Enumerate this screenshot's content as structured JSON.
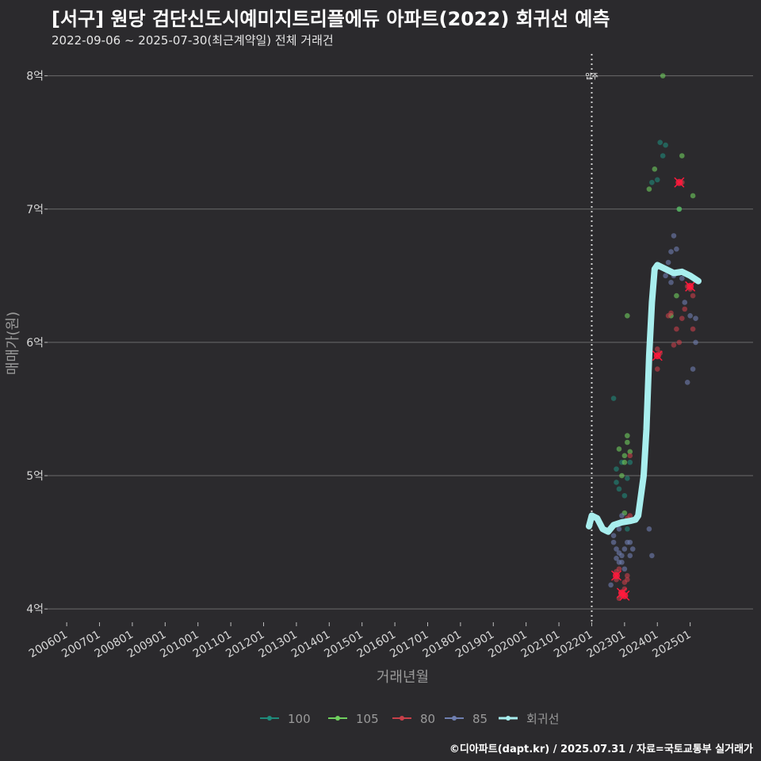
{
  "header": {
    "title": "[서구] 원당 검단신도시예미지트리플에듀 아파트(2022) 회귀선 예측",
    "subtitle": "2022-09-06 ~ 2025-07-30(최근계약일) 전체 거래건"
  },
  "caption": "©디아파트(dapt.kr) / 2025.07.31 / 자료=국토교통부 실거래가",
  "colors": {
    "background": "#2b2a2d",
    "grid": "#6b6b6b",
    "s100": "#1f8a7a",
    "s105": "#6fcf5e",
    "s80": "#c8404a",
    "s85": "#6f7fb0",
    "regression": "#a8eeee",
    "highlight": "#ff1a3c"
  },
  "chart_data": {
    "type": "scatter",
    "title": "[서구] 원당 검단신도시예미지트리플에듀 아파트(2022) 회귀선 예측",
    "subtitle": "2022-09-06 ~ 2025-07-30(최근계약일) 전체 거래건",
    "xlabel": "거래년월",
    "ylabel": "매매가(원)",
    "x_ticks": [
      "200601",
      "200701",
      "200801",
      "200901",
      "201001",
      "201101",
      "201201",
      "201301",
      "201401",
      "201501",
      "201601",
      "201701",
      "201801",
      "201901",
      "202001",
      "202101",
      "202201",
      "202301",
      "202401",
      "202501"
    ],
    "y_ticks": [
      4,
      5,
      6,
      7,
      8
    ],
    "y_tick_labels": [
      "4억",
      "5억",
      "6억",
      "7억",
      "8억"
    ],
    "xlim": [
      "2005-06",
      "2026-12"
    ],
    "ylim": [
      3.9,
      8.2
    ],
    "grid": "horizontal",
    "legend_position": "bottom",
    "annotation": {
      "x": "2022-01",
      "label": "입주"
    },
    "series": [
      {
        "name": "100",
        "points": [
          [
            "2022-09",
            5.58
          ],
          [
            "2022-10",
            4.95
          ],
          [
            "2022-10",
            5.05
          ],
          [
            "2022-11",
            4.9
          ],
          [
            "2022-12",
            5.1
          ],
          [
            "2023-01",
            4.85
          ],
          [
            "2023-02",
            4.98
          ],
          [
            "2023-03",
            5.1
          ],
          [
            "2023-02",
            4.6
          ],
          [
            "2023-11",
            7.2
          ],
          [
            "2024-01",
            7.22
          ],
          [
            "2024-02",
            7.5
          ],
          [
            "2024-03",
            7.4
          ],
          [
            "2024-04",
            7.48
          ],
          [
            "2024-09",
            7.0
          ]
        ]
      },
      {
        "name": "105",
        "points": [
          [
            "2022-11",
            5.2
          ],
          [
            "2022-12",
            5.0
          ],
          [
            "2023-01",
            5.15
          ],
          [
            "2023-01",
            5.1
          ],
          [
            "2023-01",
            4.72
          ],
          [
            "2023-02",
            5.25
          ],
          [
            "2023-02",
            5.3
          ],
          [
            "2023-03",
            5.18
          ],
          [
            "2023-02",
            6.2
          ],
          [
            "2023-10",
            7.15
          ],
          [
            "2023-12",
            7.3
          ],
          [
            "2024-03",
            8.0
          ],
          [
            "2024-06",
            6.2
          ],
          [
            "2024-08",
            6.35
          ],
          [
            "2024-09",
            7.0
          ],
          [
            "2024-10",
            7.4
          ],
          [
            "2025-02",
            7.1
          ]
        ]
      },
      {
        "name": "80",
        "points": [
          [
            "2022-10",
            4.28
          ],
          [
            "2022-10",
            4.22
          ],
          [
            "2022-11",
            4.3
          ],
          [
            "2022-11",
            4.08
          ],
          [
            "2022-12",
            4.1
          ],
          [
            "2022-12",
            4.12
          ],
          [
            "2023-01",
            4.2
          ],
          [
            "2023-01",
            4.15
          ],
          [
            "2023-02",
            4.22
          ],
          [
            "2023-02",
            4.25
          ],
          [
            "2023-02",
            4.68
          ],
          [
            "2023-03",
            4.7
          ],
          [
            "2023-03",
            5.15
          ],
          [
            "2024-01",
            5.95
          ],
          [
            "2024-01",
            5.8
          ],
          [
            "2024-02",
            5.92
          ],
          [
            "2024-05",
            6.2
          ],
          [
            "2024-06",
            6.22
          ],
          [
            "2024-07",
            5.98
          ],
          [
            "2024-08",
            6.1
          ],
          [
            "2024-09",
            6.0
          ],
          [
            "2024-10",
            6.18
          ],
          [
            "2024-11",
            6.25
          ],
          [
            "2024-10",
            7.2
          ],
          [
            "2024-12",
            6.42
          ],
          [
            "2025-01",
            6.4
          ],
          [
            "2025-02",
            6.1
          ],
          [
            "2025-02",
            6.35
          ]
        ]
      },
      {
        "name": "85",
        "points": [
          [
            "2022-08",
            4.18
          ],
          [
            "2022-09",
            4.55
          ],
          [
            "2022-09",
            4.5
          ],
          [
            "2022-10",
            4.45
          ],
          [
            "2022-10",
            4.38
          ],
          [
            "2022-11",
            4.35
          ],
          [
            "2022-11",
            4.42
          ],
          [
            "2022-12",
            4.35
          ],
          [
            "2022-12",
            4.4
          ],
          [
            "2023-01",
            4.3
          ],
          [
            "2023-01",
            4.45
          ],
          [
            "2023-02",
            4.5
          ],
          [
            "2023-03",
            4.4
          ],
          [
            "2023-03",
            4.5
          ],
          [
            "2023-04",
            4.45
          ],
          [
            "2022-11",
            4.6
          ],
          [
            "2022-12",
            4.7
          ],
          [
            "2023-10",
            4.6
          ],
          [
            "2023-11",
            4.4
          ],
          [
            "2024-04",
            6.5
          ],
          [
            "2024-05",
            6.6
          ],
          [
            "2024-06",
            6.68
          ],
          [
            "2024-06",
            6.45
          ],
          [
            "2024-07",
            6.5
          ],
          [
            "2024-07",
            6.8
          ],
          [
            "2024-08",
            6.7
          ],
          [
            "2024-09",
            6.52
          ],
          [
            "2024-10",
            6.48
          ],
          [
            "2024-11",
            6.3
          ],
          [
            "2024-12",
            5.7
          ],
          [
            "2025-01",
            6.2
          ],
          [
            "2025-02",
            5.8
          ],
          [
            "2025-03",
            6.18
          ],
          [
            "2025-03",
            6.0
          ]
        ]
      }
    ],
    "regression": {
      "name": "회귀선",
      "points": [
        [
          "2021-12",
          4.62
        ],
        [
          "2022-01",
          4.7
        ],
        [
          "2022-03",
          4.68
        ],
        [
          "2022-05",
          4.6
        ],
        [
          "2022-07",
          4.58
        ],
        [
          "2022-09",
          4.63
        ],
        [
          "2022-12",
          4.65
        ],
        [
          "2023-03",
          4.66
        ],
        [
          "2023-05",
          4.67
        ],
        [
          "2023-06",
          4.7
        ],
        [
          "2023-08",
          5.0
        ],
        [
          "2023-09",
          5.35
        ],
        [
          "2023-10",
          5.9
        ],
        [
          "2023-11",
          6.3
        ],
        [
          "2023-12",
          6.55
        ],
        [
          "2024-01",
          6.58
        ],
        [
          "2024-04",
          6.55
        ],
        [
          "2024-07",
          6.52
        ],
        [
          "2024-10",
          6.53
        ],
        [
          "2025-01",
          6.5
        ],
        [
          "2025-04",
          6.46
        ]
      ]
    },
    "highlighted_points": [
      [
        "2022-10",
        4.25
      ],
      [
        "2022-12",
        4.12
      ],
      [
        "2023-01",
        4.1
      ],
      [
        "2024-01",
        5.9
      ],
      [
        "2024-09",
        7.2
      ],
      [
        "2025-01",
        6.42
      ]
    ]
  },
  "legend": {
    "items": [
      {
        "label": "100",
        "key": "s100"
      },
      {
        "label": "105",
        "key": "s105"
      },
      {
        "label": "80",
        "key": "s80"
      },
      {
        "label": "85",
        "key": "s85"
      },
      {
        "label": "회귀선",
        "key": "regression"
      }
    ]
  }
}
